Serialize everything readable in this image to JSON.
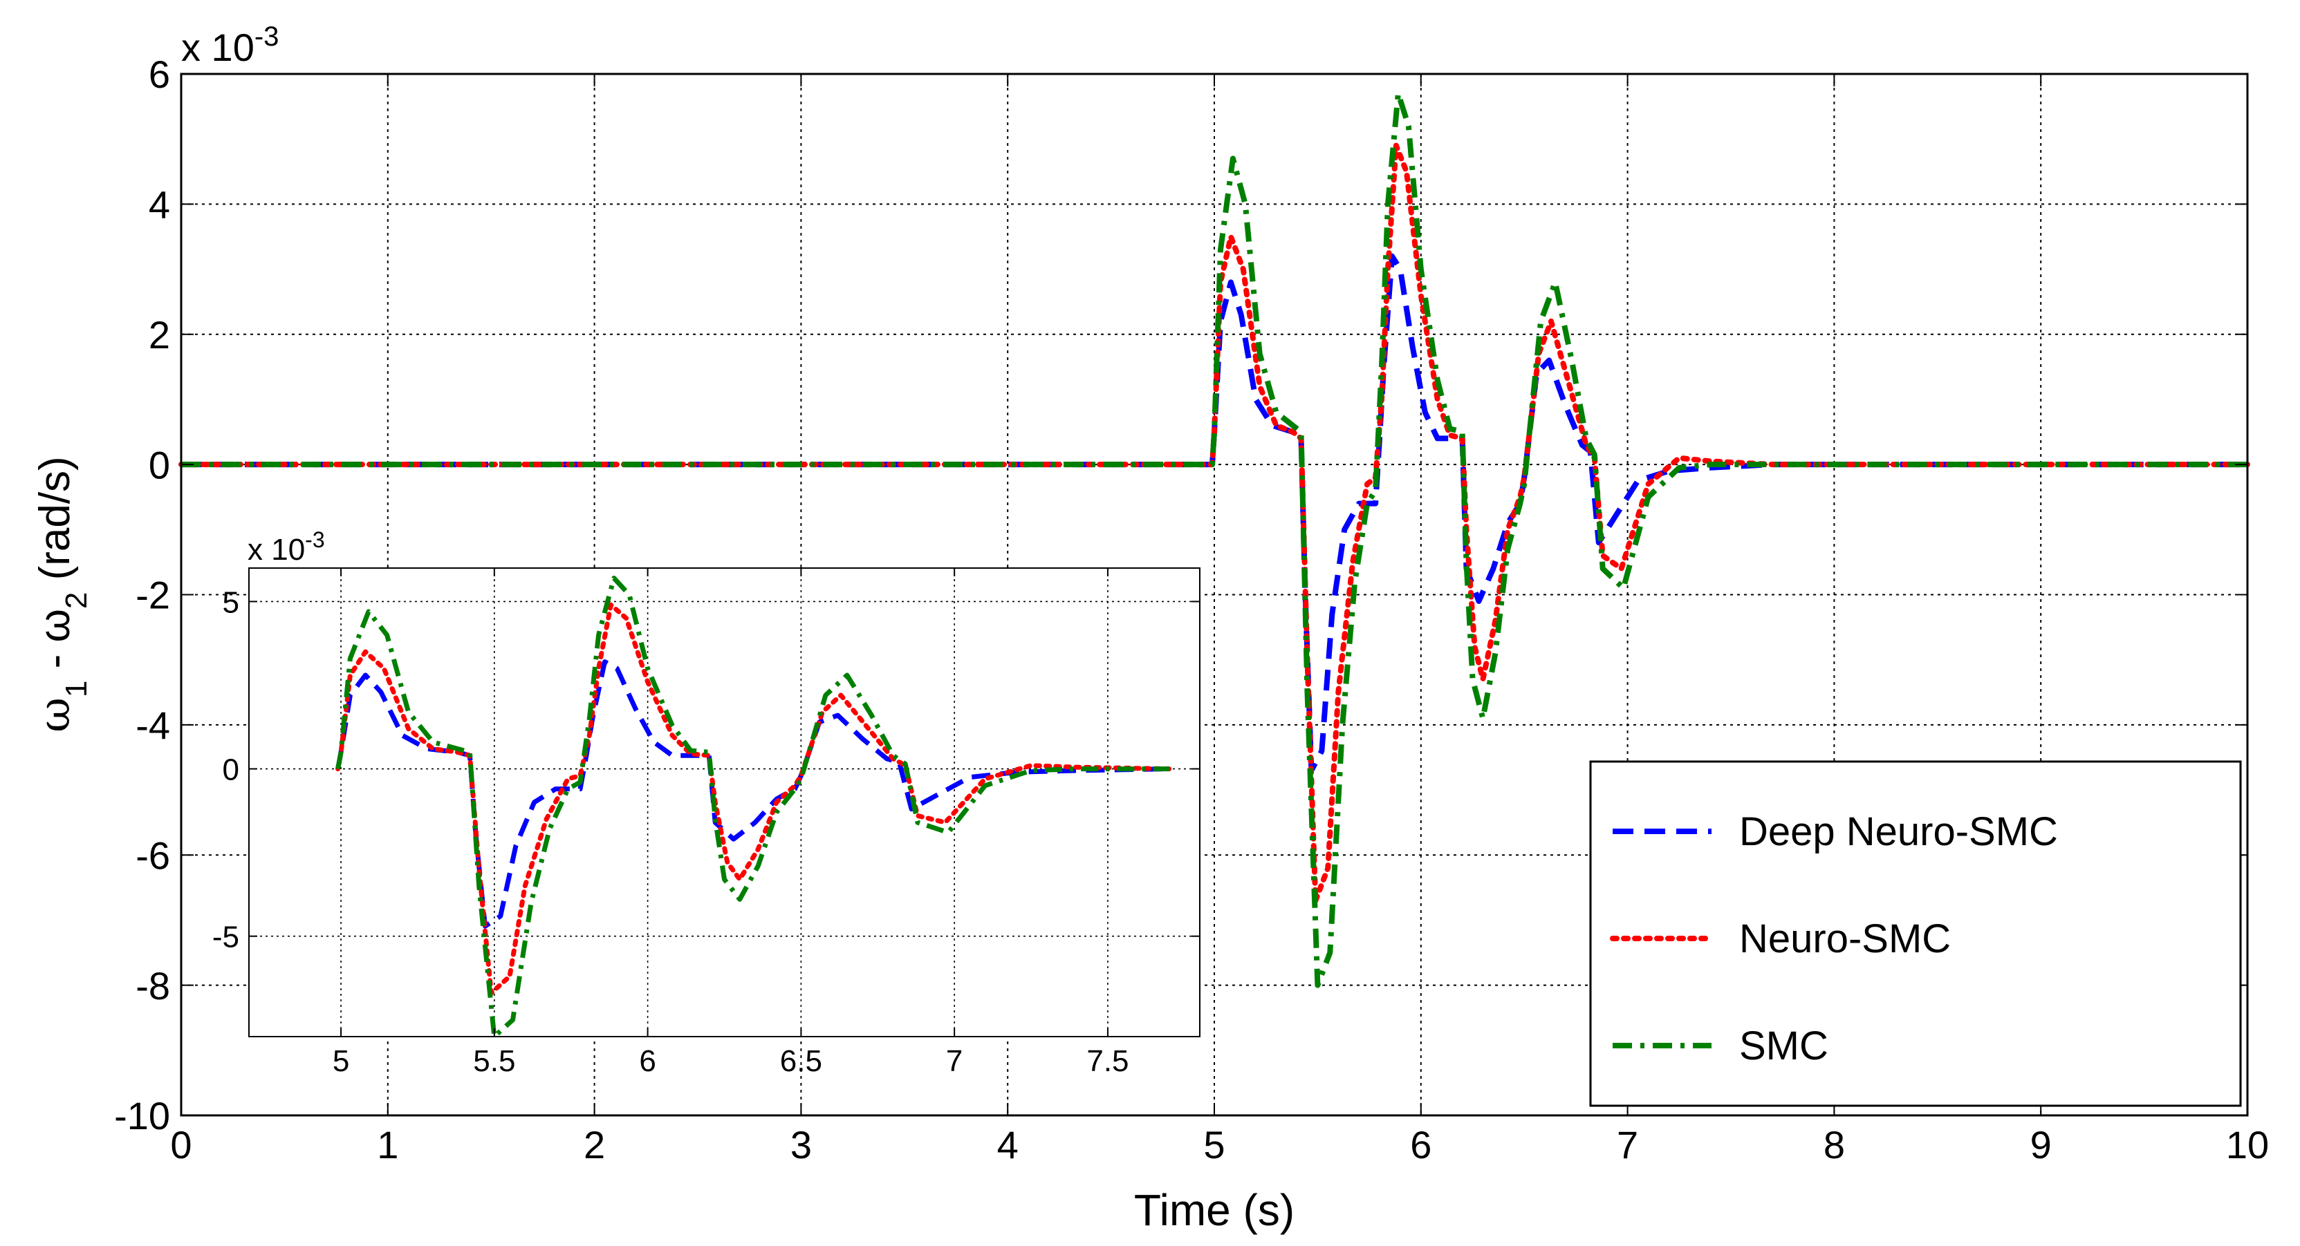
{
  "chart_data": [
    {
      "type": "line",
      "xlabel": "Time (s)",
      "ylabel_main": "ω",
      "ylabel_sub1": "1",
      "ylabel_mid": " - ω",
      "ylabel_sub2": "2",
      "ylabel_unit": " (rad/s)",
      "y_multiplier_base": "x 10",
      "y_multiplier_exp": "-3",
      "xlim": [
        0,
        10
      ],
      "ylim": [
        -10,
        6
      ],
      "xticks": [
        0,
        1,
        2,
        3,
        4,
        5,
        6,
        7,
        8,
        9,
        10
      ],
      "yticks": [
        -10,
        -8,
        -6,
        -4,
        -2,
        0,
        2,
        4,
        6
      ],
      "grid": true,
      "legend_position": "bottom-right",
      "series": [
        {
          "name": "Deep Neuro-SMC",
          "color": "#0000ff",
          "style": "dashed",
          "x": [
            0,
            4.99,
            5.0,
            5.03,
            5.08,
            5.13,
            5.2,
            5.28,
            5.38,
            5.42,
            5.44,
            5.47,
            5.52,
            5.57,
            5.63,
            5.7,
            5.78,
            5.8,
            5.82,
            5.86,
            5.9,
            5.96,
            6.02,
            6.08,
            6.12,
            6.2,
            6.22,
            6.28,
            6.35,
            6.42,
            6.48,
            6.5,
            6.56,
            6.62,
            6.7,
            6.78,
            6.82,
            6.86,
            6.94,
            7.05,
            7.2,
            7.4,
            7.7,
            8.0,
            10.0
          ],
          "y": [
            0,
            0,
            0.5,
            2.2,
            2.8,
            2.3,
            1.0,
            0.6,
            0.5,
            0.4,
            -2.0,
            -4.7,
            -4.4,
            -2.3,
            -1.0,
            -0.6,
            -0.6,
            0.4,
            1.5,
            3.2,
            3.0,
            1.8,
            0.8,
            0.4,
            0.4,
            0.4,
            -1.6,
            -2.1,
            -1.6,
            -0.9,
            -0.6,
            -0.2,
            1.4,
            1.6,
            0.9,
            0.3,
            0.2,
            -1.2,
            -0.8,
            -0.25,
            -0.1,
            -0.05,
            0,
            0,
            0
          ]
        },
        {
          "name": "Neuro-SMC",
          "color": "#ff0000",
          "style": "dotted",
          "x": [
            0,
            4.99,
            5.0,
            5.03,
            5.08,
            5.14,
            5.22,
            5.3,
            5.38,
            5.42,
            5.45,
            5.49,
            5.55,
            5.6,
            5.67,
            5.74,
            5.78,
            5.81,
            5.84,
            5.88,
            5.93,
            6.0,
            6.08,
            6.14,
            6.2,
            6.22,
            6.26,
            6.3,
            6.36,
            6.42,
            6.48,
            6.5,
            6.57,
            6.63,
            6.72,
            6.8,
            6.84,
            6.88,
            6.97,
            7.1,
            7.25,
            7.4,
            7.7,
            8.0,
            10.0
          ],
          "y": [
            0,
            0,
            0.5,
            2.8,
            3.5,
            3.0,
            1.2,
            0.6,
            0.5,
            0.4,
            -3.0,
            -6.7,
            -6.2,
            -3.5,
            -1.5,
            -0.3,
            -0.2,
            1.0,
            3.0,
            4.9,
            4.5,
            2.6,
            1.0,
            0.45,
            0.4,
            -1.0,
            -2.8,
            -3.3,
            -2.4,
            -1.0,
            -0.5,
            -0.2,
            1.7,
            2.2,
            1.2,
            0.3,
            0.1,
            -1.4,
            -1.6,
            -0.3,
            0.1,
            0.05,
            0,
            0,
            0
          ]
        },
        {
          "name": "SMC",
          "color": "#008000",
          "style": "dashdot",
          "x": [
            0,
            4.99,
            5.0,
            5.03,
            5.09,
            5.15,
            5.22,
            5.3,
            5.38,
            5.42,
            5.45,
            5.5,
            5.56,
            5.62,
            5.68,
            5.74,
            5.78,
            5.81,
            5.84,
            5.89,
            5.94,
            6.0,
            6.08,
            6.14,
            6.2,
            6.22,
            6.25,
            6.3,
            6.36,
            6.42,
            6.48,
            6.5,
            6.58,
            6.65,
            6.73,
            6.8,
            6.84,
            6.88,
            6.98,
            7.1,
            7.25,
            7.4,
            7.7,
            8.0,
            10.0
          ],
          "y": [
            0,
            0,
            0.5,
            3.3,
            4.7,
            4.0,
            1.7,
            0.8,
            0.6,
            0.5,
            -3.5,
            -8.0,
            -7.5,
            -4.0,
            -1.8,
            -0.6,
            -0.4,
            1.5,
            4.0,
            5.7,
            5.2,
            3.0,
            1.3,
            0.55,
            0.5,
            -1.5,
            -3.3,
            -3.9,
            -2.9,
            -1.3,
            -0.6,
            -0.3,
            2.2,
            2.8,
            1.6,
            0.4,
            0.15,
            -1.6,
            -1.9,
            -0.5,
            -0.05,
            0,
            0,
            0,
            0
          ]
        }
      ]
    },
    {
      "type": "line",
      "role": "inset",
      "y_multiplier_base": "x 10",
      "y_multiplier_exp": "-3",
      "xlim": [
        4.7,
        7.8
      ],
      "ylim": [
        -8,
        6
      ],
      "xticks": [
        5,
        5.5,
        6,
        6.5,
        7,
        7.5
      ],
      "xtick_labels": [
        "5",
        "5.5",
        "6",
        "6.5",
        "7",
        "7.5"
      ],
      "yticks": [
        -5,
        0,
        5
      ],
      "grid": true,
      "series_ref": "same as main chart series"
    }
  ]
}
